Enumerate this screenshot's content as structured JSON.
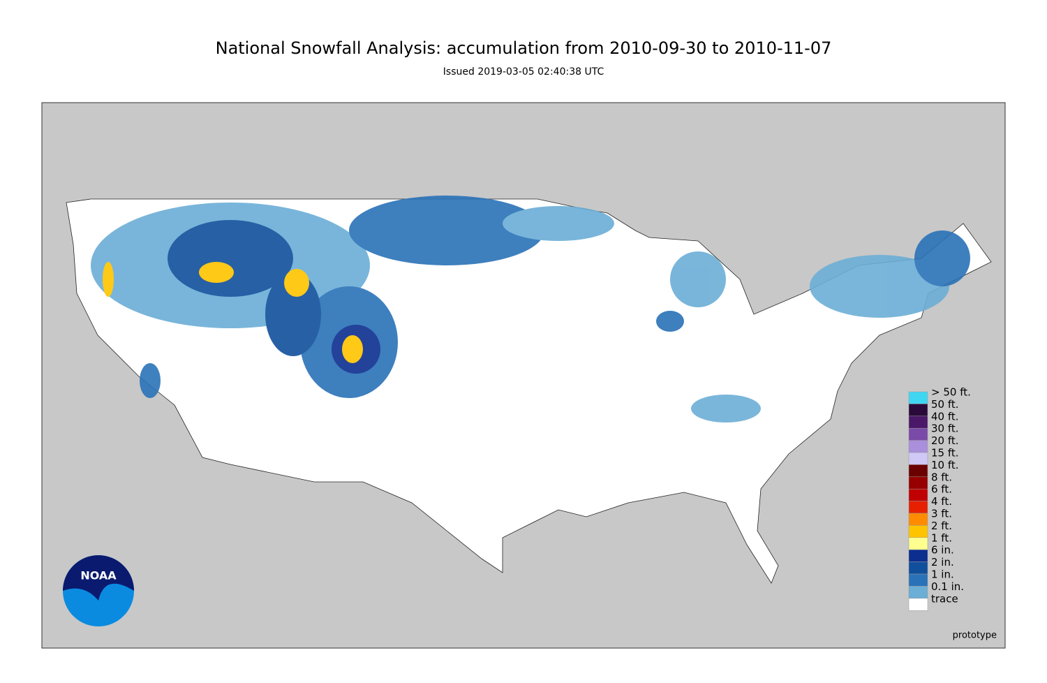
{
  "title": "National Snowfall Analysis: accumulation from 2010-09-30 to 2010-11-07",
  "subtitle": "Issued 2019-03-05 02:40:38 UTC",
  "logo": {
    "text": "NOAA"
  },
  "note": "prototype",
  "legend": {
    "items": [
      {
        "label": "> 50 ft.",
        "color": "#3fd6f2"
      },
      {
        "label": "50 ft.",
        "color": "#2a0a3a"
      },
      {
        "label": "40 ft.",
        "color": "#4b1768"
      },
      {
        "label": "30 ft.",
        "color": "#7a4aa8"
      },
      {
        "label": "20 ft.",
        "color": "#a98fdc"
      },
      {
        "label": "15 ft.",
        "color": "#d0c8f5"
      },
      {
        "label": "10 ft.",
        "color": "#6b0000"
      },
      {
        "label": "8 ft.",
        "color": "#960000"
      },
      {
        "label": "6 ft.",
        "color": "#c00000"
      },
      {
        "label": "4 ft.",
        "color": "#e62000"
      },
      {
        "label": "3 ft.",
        "color": "#ff8c00"
      },
      {
        "label": "2 ft.",
        "color": "#ffc400"
      },
      {
        "label": "1 ft.",
        "color": "#ffff90"
      },
      {
        "label": "6 in.",
        "color": "#0c2e8f"
      },
      {
        "label": "2 in.",
        "color": "#104f9c"
      },
      {
        "label": "1 in.",
        "color": "#2a72b8"
      },
      {
        "label": "0.1 in.",
        "color": "#6baed6"
      },
      {
        "label": "trace",
        "color": "#ffffff"
      }
    ]
  }
}
